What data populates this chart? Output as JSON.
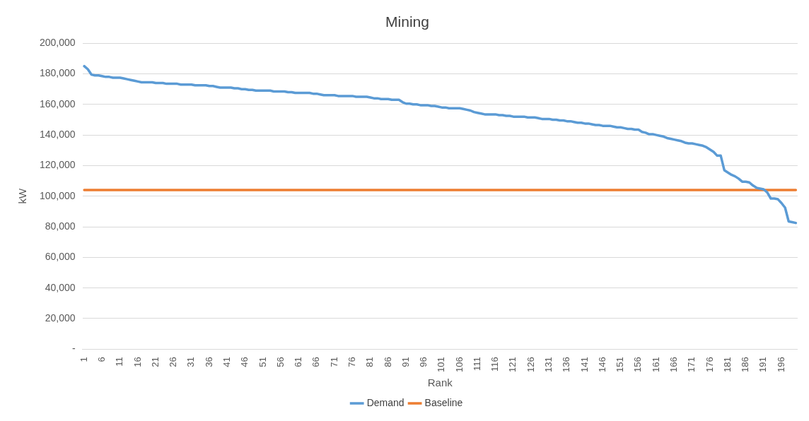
{
  "chart_data": {
    "type": "line",
    "title": "Mining",
    "xlabel": "Rank",
    "ylabel": "kW",
    "categories": [
      "1",
      null,
      null,
      null,
      null,
      "6",
      null,
      null,
      null,
      null,
      "11",
      null,
      null,
      null,
      null,
      "16",
      null,
      null,
      null,
      null,
      "21",
      null,
      null,
      null,
      null,
      "26",
      null,
      null,
      null,
      null,
      "31",
      null,
      null,
      null,
      null,
      "36",
      null,
      null,
      null,
      null,
      "41",
      null,
      null,
      null,
      null,
      "46",
      null,
      null,
      null,
      null,
      "51",
      null,
      null,
      null,
      null,
      "56",
      null,
      null,
      null,
      null,
      "61",
      null,
      null,
      null,
      null,
      "66",
      null,
      null,
      null,
      null,
      "71",
      null,
      null,
      null,
      null,
      "76",
      null,
      null,
      null,
      null,
      "81",
      null,
      null,
      null,
      null,
      "86",
      null,
      null,
      null,
      null,
      "91",
      null,
      null,
      null,
      null,
      "96",
      null,
      null,
      null,
      null,
      "101",
      null,
      null,
      null,
      null,
      "106",
      null,
      null,
      null,
      null,
      "111",
      null,
      null,
      null,
      null,
      "116",
      null,
      null,
      null,
      null,
      "121",
      null,
      null,
      null,
      null,
      "126",
      null,
      null,
      null,
      null,
      "131",
      null,
      null,
      null,
      null,
      "136",
      null,
      null,
      null,
      null,
      "141",
      null,
      null,
      null,
      null,
      "146",
      null,
      null,
      null,
      null,
      "151",
      null,
      null,
      null,
      null,
      "156",
      null,
      null,
      null,
      null,
      "161",
      null,
      null,
      null,
      null,
      "166",
      null,
      null,
      null,
      null,
      "171",
      null,
      null,
      null,
      null,
      "176",
      null,
      null,
      null,
      null,
      "181",
      null,
      null,
      null,
      null,
      "186",
      null,
      null,
      null,
      null,
      "191",
      null,
      null,
      null,
      null,
      "196",
      null,
      null,
      null,
      null
    ],
    "series": [
      {
        "name": "Demand",
        "color": "#5b9bd5",
        "values": [
          185000,
          183000,
          179500,
          179000,
          179000,
          178500,
          178000,
          178000,
          177500,
          177500,
          177500,
          177000,
          176500,
          176000,
          175500,
          175000,
          174500,
          174500,
          174500,
          174500,
          174000,
          174000,
          174000,
          173500,
          173500,
          173500,
          173500,
          173000,
          173000,
          173000,
          173000,
          172500,
          172500,
          172500,
          172500,
          172000,
          172000,
          171500,
          171000,
          171000,
          171000,
          171000,
          170500,
          170500,
          170000,
          170000,
          169500,
          169500,
          169000,
          169000,
          169000,
          169000,
          169000,
          168500,
          168500,
          168500,
          168500,
          168000,
          168000,
          167500,
          167500,
          167500,
          167500,
          167500,
          167000,
          167000,
          166500,
          166000,
          166000,
          166000,
          166000,
          165500,
          165500,
          165500,
          165500,
          165500,
          165000,
          165000,
          165000,
          165000,
          164500,
          164000,
          164000,
          163500,
          163500,
          163500,
          163000,
          163000,
          163000,
          161500,
          160500,
          160500,
          160000,
          160000,
          159500,
          159500,
          159500,
          159000,
          159000,
          158500,
          158000,
          158000,
          157500,
          157500,
          157500,
          157500,
          157000,
          156500,
          156000,
          155000,
          154500,
          154000,
          153500,
          153500,
          153500,
          153500,
          153000,
          153000,
          152500,
          152500,
          152000,
          152000,
          152000,
          152000,
          151500,
          151500,
          151500,
          151000,
          150500,
          150500,
          150500,
          150000,
          150000,
          149500,
          149500,
          149000,
          149000,
          148500,
          148000,
          148000,
          147500,
          147500,
          147000,
          146500,
          146500,
          146000,
          146000,
          146000,
          145500,
          145000,
          145000,
          144500,
          144000,
          144000,
          143500,
          143500,
          142000,
          141500,
          140500,
          140500,
          140000,
          139500,
          139000,
          138000,
          137500,
          137000,
          136500,
          136000,
          135000,
          134500,
          134500,
          134000,
          133500,
          133000,
          132000,
          130500,
          129000,
          126500,
          126500,
          117000,
          115500,
          114000,
          113000,
          111500,
          109500,
          109500,
          109000,
          107000,
          105500,
          105000,
          104500,
          102500,
          98500,
          98500,
          98000,
          95500,
          92500,
          83500,
          83000,
          82500
        ]
      },
      {
        "name": "Baseline",
        "color": "#ed7d31",
        "values": [
          104000,
          104000,
          104000,
          104000,
          104000,
          104000,
          104000,
          104000,
          104000,
          104000,
          104000,
          104000,
          104000,
          104000,
          104000,
          104000,
          104000,
          104000,
          104000,
          104000,
          104000,
          104000,
          104000,
          104000,
          104000,
          104000,
          104000,
          104000,
          104000,
          104000,
          104000,
          104000,
          104000,
          104000,
          104000,
          104000,
          104000,
          104000,
          104000,
          104000,
          104000,
          104000,
          104000,
          104000,
          104000,
          104000,
          104000,
          104000,
          104000,
          104000,
          104000,
          104000,
          104000,
          104000,
          104000,
          104000,
          104000,
          104000,
          104000,
          104000,
          104000,
          104000,
          104000,
          104000,
          104000,
          104000,
          104000,
          104000,
          104000,
          104000,
          104000,
          104000,
          104000,
          104000,
          104000,
          104000,
          104000,
          104000,
          104000,
          104000,
          104000,
          104000,
          104000,
          104000,
          104000,
          104000,
          104000,
          104000,
          104000,
          104000,
          104000,
          104000,
          104000,
          104000,
          104000,
          104000,
          104000,
          104000,
          104000,
          104000,
          104000,
          104000,
          104000,
          104000,
          104000,
          104000,
          104000,
          104000,
          104000,
          104000,
          104000,
          104000,
          104000,
          104000,
          104000,
          104000,
          104000,
          104000,
          104000,
          104000,
          104000,
          104000,
          104000,
          104000,
          104000,
          104000,
          104000,
          104000,
          104000,
          104000,
          104000,
          104000,
          104000,
          104000,
          104000,
          104000,
          104000,
          104000,
          104000,
          104000,
          104000,
          104000,
          104000,
          104000,
          104000,
          104000,
          104000,
          104000,
          104000,
          104000,
          104000,
          104000,
          104000,
          104000,
          104000,
          104000,
          104000,
          104000,
          104000,
          104000,
          104000,
          104000,
          104000,
          104000,
          104000,
          104000,
          104000,
          104000,
          104000,
          104000,
          104000,
          104000,
          104000,
          104000,
          104000,
          104000,
          104000,
          104000,
          104000,
          104000,
          104000,
          104000,
          104000,
          104000,
          104000,
          104000,
          104000,
          104000,
          104000,
          104000,
          104000,
          104000,
          104000,
          104000,
          104000,
          104000,
          104000,
          104000,
          104000,
          104000
        ]
      }
    ],
    "ylim": [
      0,
      200000
    ],
    "yticks": [
      {
        "value": 0,
        "label": "-"
      },
      {
        "value": 20000,
        "label": "20,000"
      },
      {
        "value": 40000,
        "label": "40,000"
      },
      {
        "value": 60000,
        "label": "60,000"
      },
      {
        "value": 80000,
        "label": "80,000"
      },
      {
        "value": 100000,
        "label": "100,000"
      },
      {
        "value": 120000,
        "label": "120,000"
      },
      {
        "value": 140000,
        "label": "140,000"
      },
      {
        "value": 160000,
        "label": "160,000"
      },
      {
        "value": 180000,
        "label": "180,000"
      },
      {
        "value": 200000,
        "label": "200,000"
      }
    ],
    "grid": "y",
    "legend": "bottom",
    "marker": "none",
    "line_style": "solid"
  }
}
